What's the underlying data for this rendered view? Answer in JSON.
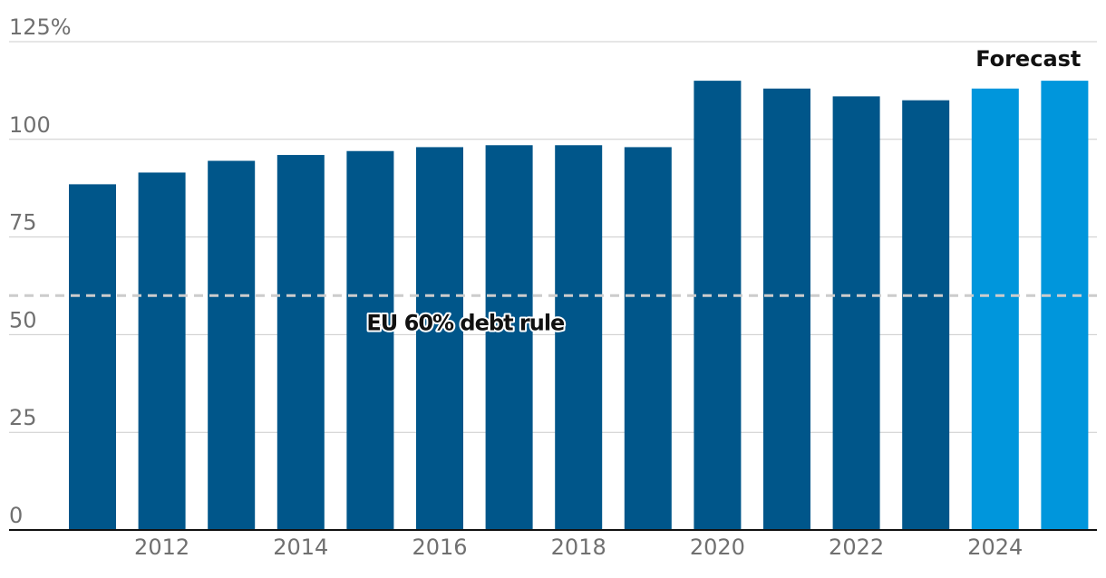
{
  "chart_data": {
    "type": "bar",
    "title": "",
    "xlabel": "",
    "ylabel": "",
    "unit": "%",
    "ylim": [
      0,
      125
    ],
    "yticks": [
      0,
      25,
      50,
      75,
      100,
      125
    ],
    "ytick_labels": [
      "0",
      "25",
      "50",
      "75",
      "100",
      "125%"
    ],
    "grid": true,
    "x": [
      2011,
      2012,
      2013,
      2014,
      2015,
      2016,
      2017,
      2018,
      2019,
      2020,
      2021,
      2022,
      2023,
      2024,
      2025
    ],
    "xtick_labels": [
      "2012",
      "2014",
      "2016",
      "2018",
      "2020",
      "2022",
      "2024"
    ],
    "values": [
      88.5,
      91.5,
      94.5,
      96.0,
      97.0,
      98.0,
      98.5,
      98.5,
      98.0,
      115.0,
      113.0,
      111.0,
      110.0,
      113.0,
      115.0
    ],
    "forecast_from": 2024,
    "colors": {
      "actual": "#00568a",
      "forecast": "#0096dc",
      "reference": "#cccccc",
      "grid": "#cccccc",
      "axis": "#111111"
    },
    "reference_line": {
      "value": 60,
      "label": "EU 60% debt rule"
    },
    "forecast_label": "Forecast"
  }
}
